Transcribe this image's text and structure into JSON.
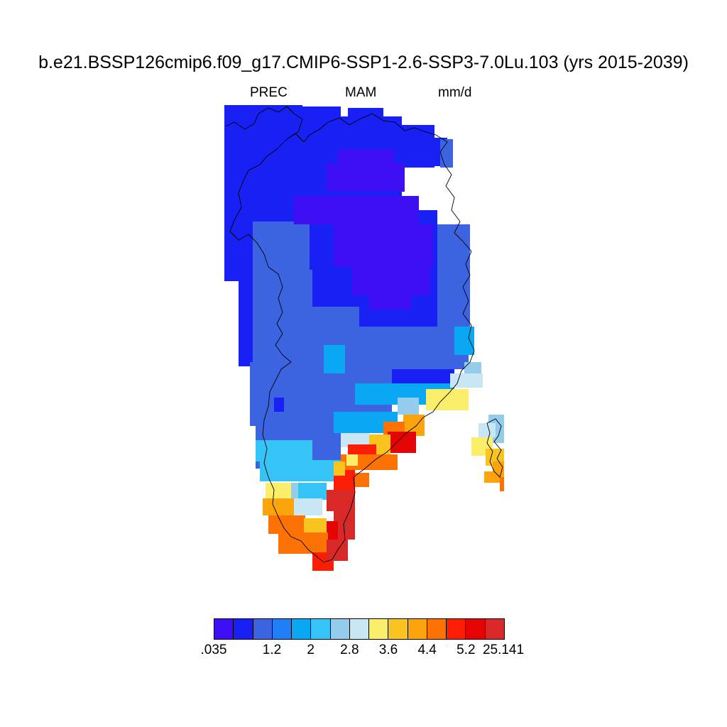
{
  "title": "b.e21.BSSP126cmip6.f09_g17.CMIP6-SSP1-2.6-SSP3-7.0Lu.103 (yrs 2015-2039)",
  "subtitle": {
    "variable": "PREC",
    "season": "MAM",
    "units": "mm/d"
  },
  "colorbar": {
    "colors": [
      "#3e0ff3",
      "#1820f3",
      "#3c64e0",
      "#1e7ff7",
      "#0aa7f5",
      "#36c4f7",
      "#94ccec",
      "#c8e6f4",
      "#fbee6a",
      "#fbc320",
      "#fca40c",
      "#fc7204",
      "#fc1e04",
      "#e40404",
      "#d82828"
    ],
    "tick_labels": [
      ".035",
      "1.2",
      "2",
      "2.8",
      "3.6",
      "4.4",
      "5.2",
      "25.141"
    ]
  }
}
